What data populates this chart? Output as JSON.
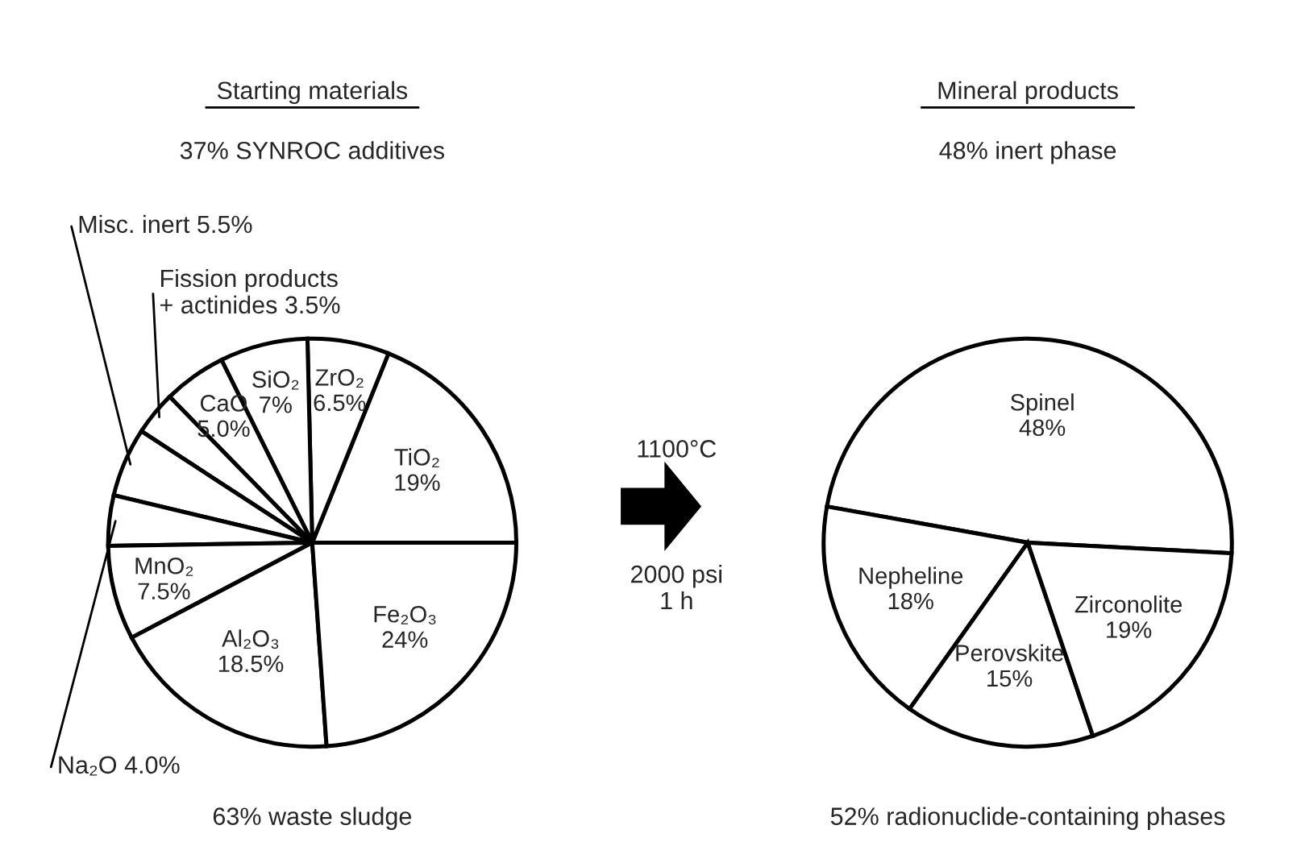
{
  "chart_data": [
    {
      "type": "pie",
      "title": "Starting materials",
      "categories": [
        "TiO₂",
        "ZrO₂",
        "SiO₂",
        "CaO",
        "Fission products\n+ actinides",
        "Misc. inert",
        "Na₂O",
        "MnO₂",
        "Al₂O₃",
        "Fe₂O₃"
      ],
      "values": [
        19,
        6.5,
        7,
        5.0,
        3.5,
        5.5,
        4.0,
        7.5,
        18.5,
        24
      ],
      "value_labels": [
        "19%",
        "6.5%",
        "7%",
        "5.0%",
        "3.5%",
        "5.5%",
        "4.0%",
        "7.5%",
        "18.5%",
        "24%"
      ],
      "colors": [
        "#ffffff",
        "#ffffff",
        "#ffffff",
        "#ffffff",
        "#ffffff",
        "#ffffff",
        "#ffffff",
        "#ffffff",
        "#ffffff",
        "#ffffff"
      ],
      "annotations": [
        "37% SYNROC additives",
        "63% waste sludge"
      ]
    },
    {
      "type": "other",
      "annotations": [
        "1100°C",
        "2000 psi\n1 h"
      ]
    },
    {
      "type": "pie",
      "title": "Mineral products",
      "categories": [
        "Spinel",
        "Nepheline",
        "Perovskite",
        "Zirconolite"
      ],
      "values": [
        48,
        18,
        15,
        19
      ],
      "value_labels": [
        "48%",
        "18%",
        "15%",
        "19%"
      ],
      "colors": [
        "#ffffff",
        "#ffffff",
        "#ffffff",
        "#ffffff"
      ],
      "annotations": [
        "48% inert phase",
        "52% radionuclide-containing phases"
      ]
    }
  ]
}
